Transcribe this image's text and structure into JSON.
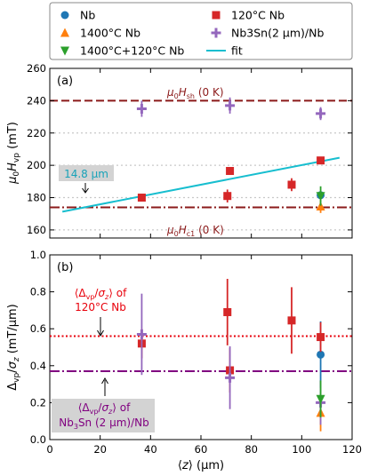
{
  "legend": {
    "entries": [
      {
        "label": "Nb",
        "color": "#1f77b4",
        "marker": "circle"
      },
      {
        "label": "120°C Nb",
        "color": "#d62728",
        "marker": "square"
      },
      {
        "label": "1400°C Nb",
        "color": "#ff7f0e",
        "marker": "triangle-up"
      },
      {
        "label": "Nb3Sn(2 μm)/Nb",
        "color": "#9467bd",
        "marker": "plus"
      },
      {
        "label": "1400°C+120°C Nb",
        "color": "#2ca02c",
        "marker": "triangle-down"
      },
      {
        "label": "fit",
        "color": "#17becf",
        "marker": "line"
      }
    ]
  },
  "chart_data": [
    {
      "panel": "(a)",
      "type": "scatter",
      "ylabel": "μ0Hvp (mT)",
      "xlim": [
        0,
        120
      ],
      "ylim": [
        155,
        260
      ],
      "yticks": [
        160,
        180,
        200,
        220,
        240,
        260
      ],
      "hlines": [
        {
          "label": "μ0Hsh (0 K)",
          "y": 240,
          "style": "dashed",
          "color": "#8b1a1a"
        },
        {
          "label": "μ0Hc1 (0 K)",
          "y": 174,
          "style": "dashdot",
          "color": "#8b1a1a"
        }
      ],
      "grid_y": [
        160,
        180,
        200,
        220
      ],
      "series": [
        {
          "name": "Nb",
          "points": [
            {
              "x": 107.5,
              "y": 181.5,
              "err": 1.5
            }
          ]
        },
        {
          "name": "120°C Nb",
          "points": [
            {
              "x": 36.5,
              "y": 180,
              "err": 2
            },
            {
              "x": 70.5,
              "y": 181,
              "err": 4
            },
            {
              "x": 71.5,
              "y": 196.5,
              "err": 2
            },
            {
              "x": 96,
              "y": 188,
              "err": 4
            },
            {
              "x": 107.5,
              "y": 203,
              "err": 2
            }
          ]
        },
        {
          "name": "1400°C Nb",
          "points": [
            {
              "x": 107.5,
              "y": 174.5,
              "err": 4
            }
          ]
        },
        {
          "name": "Nb3Sn(2 μm)/Nb",
          "points": [
            {
              "x": 36.5,
              "y": 235,
              "err": 5
            },
            {
              "x": 71.5,
              "y": 237,
              "err": 5
            },
            {
              "x": 107.5,
              "y": 232,
              "err": 4
            }
          ]
        },
        {
          "name": "1400°C+120°C Nb",
          "points": [
            {
              "x": 107.5,
              "y": 181,
              "err": 6
            }
          ]
        }
      ],
      "fit": {
        "x": [
          5,
          115
        ],
        "y": [
          171.3,
          204.7
        ]
      },
      "annotation": {
        "text": "14.8 μm",
        "x": 14.8,
        "y": 174
      }
    },
    {
      "panel": "(b)",
      "type": "scatter",
      "xlabel": "⟨z⟩ (μm)",
      "ylabel": "Δvp/σz (mT/μm)",
      "xlim": [
        0,
        120
      ],
      "ylim": [
        0,
        1.0
      ],
      "xticks": [
        0,
        20,
        40,
        60,
        80,
        100,
        120
      ],
      "yticks": [
        0.0,
        0.2,
        0.4,
        0.6,
        0.8,
        1.0
      ],
      "hlines": [
        {
          "label": "⟨Δvp/σz⟩ of 120°C Nb",
          "y": 0.56,
          "style": "dotted",
          "color": "#e8000b"
        },
        {
          "label": "⟨Δvp/σz⟩ of Nb3Sn (2 μm)/Nb",
          "y": 0.37,
          "style": "dashdot",
          "color": "#800080"
        }
      ],
      "series": [
        {
          "name": "Nb",
          "points": [
            {
              "x": 107.5,
              "y": 0.46,
              "err": 0.18
            }
          ]
        },
        {
          "name": "120°C Nb",
          "points": [
            {
              "x": 36.5,
              "y": 0.52,
              "err": 0.08
            },
            {
              "x": 70.5,
              "y": 0.69,
              "err": 0.18
            },
            {
              "x": 71.5,
              "y": 0.375,
              "err": 0.12
            },
            {
              "x": 96,
              "y": 0.645,
              "err": 0.18
            },
            {
              "x": 107.5,
              "y": 0.555,
              "err": 0.08
            }
          ]
        },
        {
          "name": "1400°C Nb",
          "points": [
            {
              "x": 107.5,
              "y": 0.145,
              "err": 0.1
            }
          ]
        },
        {
          "name": "Nb3Sn(2 μm)/Nb",
          "points": [
            {
              "x": 36.5,
              "y": 0.57,
              "err": 0.22
            },
            {
              "x": 71.5,
              "y": 0.335,
              "err": 0.17
            },
            {
              "x": 107.5,
              "y": 0.2,
              "err": 0.12
            }
          ]
        },
        {
          "name": "1400°C+120°C Nb",
          "points": [
            {
              "x": 107.5,
              "y": 0.22,
              "err": 0.1
            }
          ]
        }
      ]
    }
  ],
  "labels": {
    "a_panel": "(a)",
    "b_panel": "(b)",
    "a_hsh_sym": "μ",
    "a_hsh_sub0": "0",
    "a_hsh_H": "H",
    "a_hsh_sub": "sh",
    "a_hsh_rest": " (0 K)",
    "a_hc1_sym": "μ",
    "a_hc1_sub0": "0",
    "a_hc1_H": "H",
    "a_hc1_sub": "c1",
    "a_hc1_rest": " (0 K)",
    "fit_annotation": "14.8 μm",
    "b_red_line1": "⟨Δvp/σz⟩ of",
    "b_red_line2": "120°C Nb",
    "b_purple_line1": "⟨Δvp/σz⟩ of",
    "b_purple_line2": "Nb3Sn (2 μm)/Nb"
  }
}
